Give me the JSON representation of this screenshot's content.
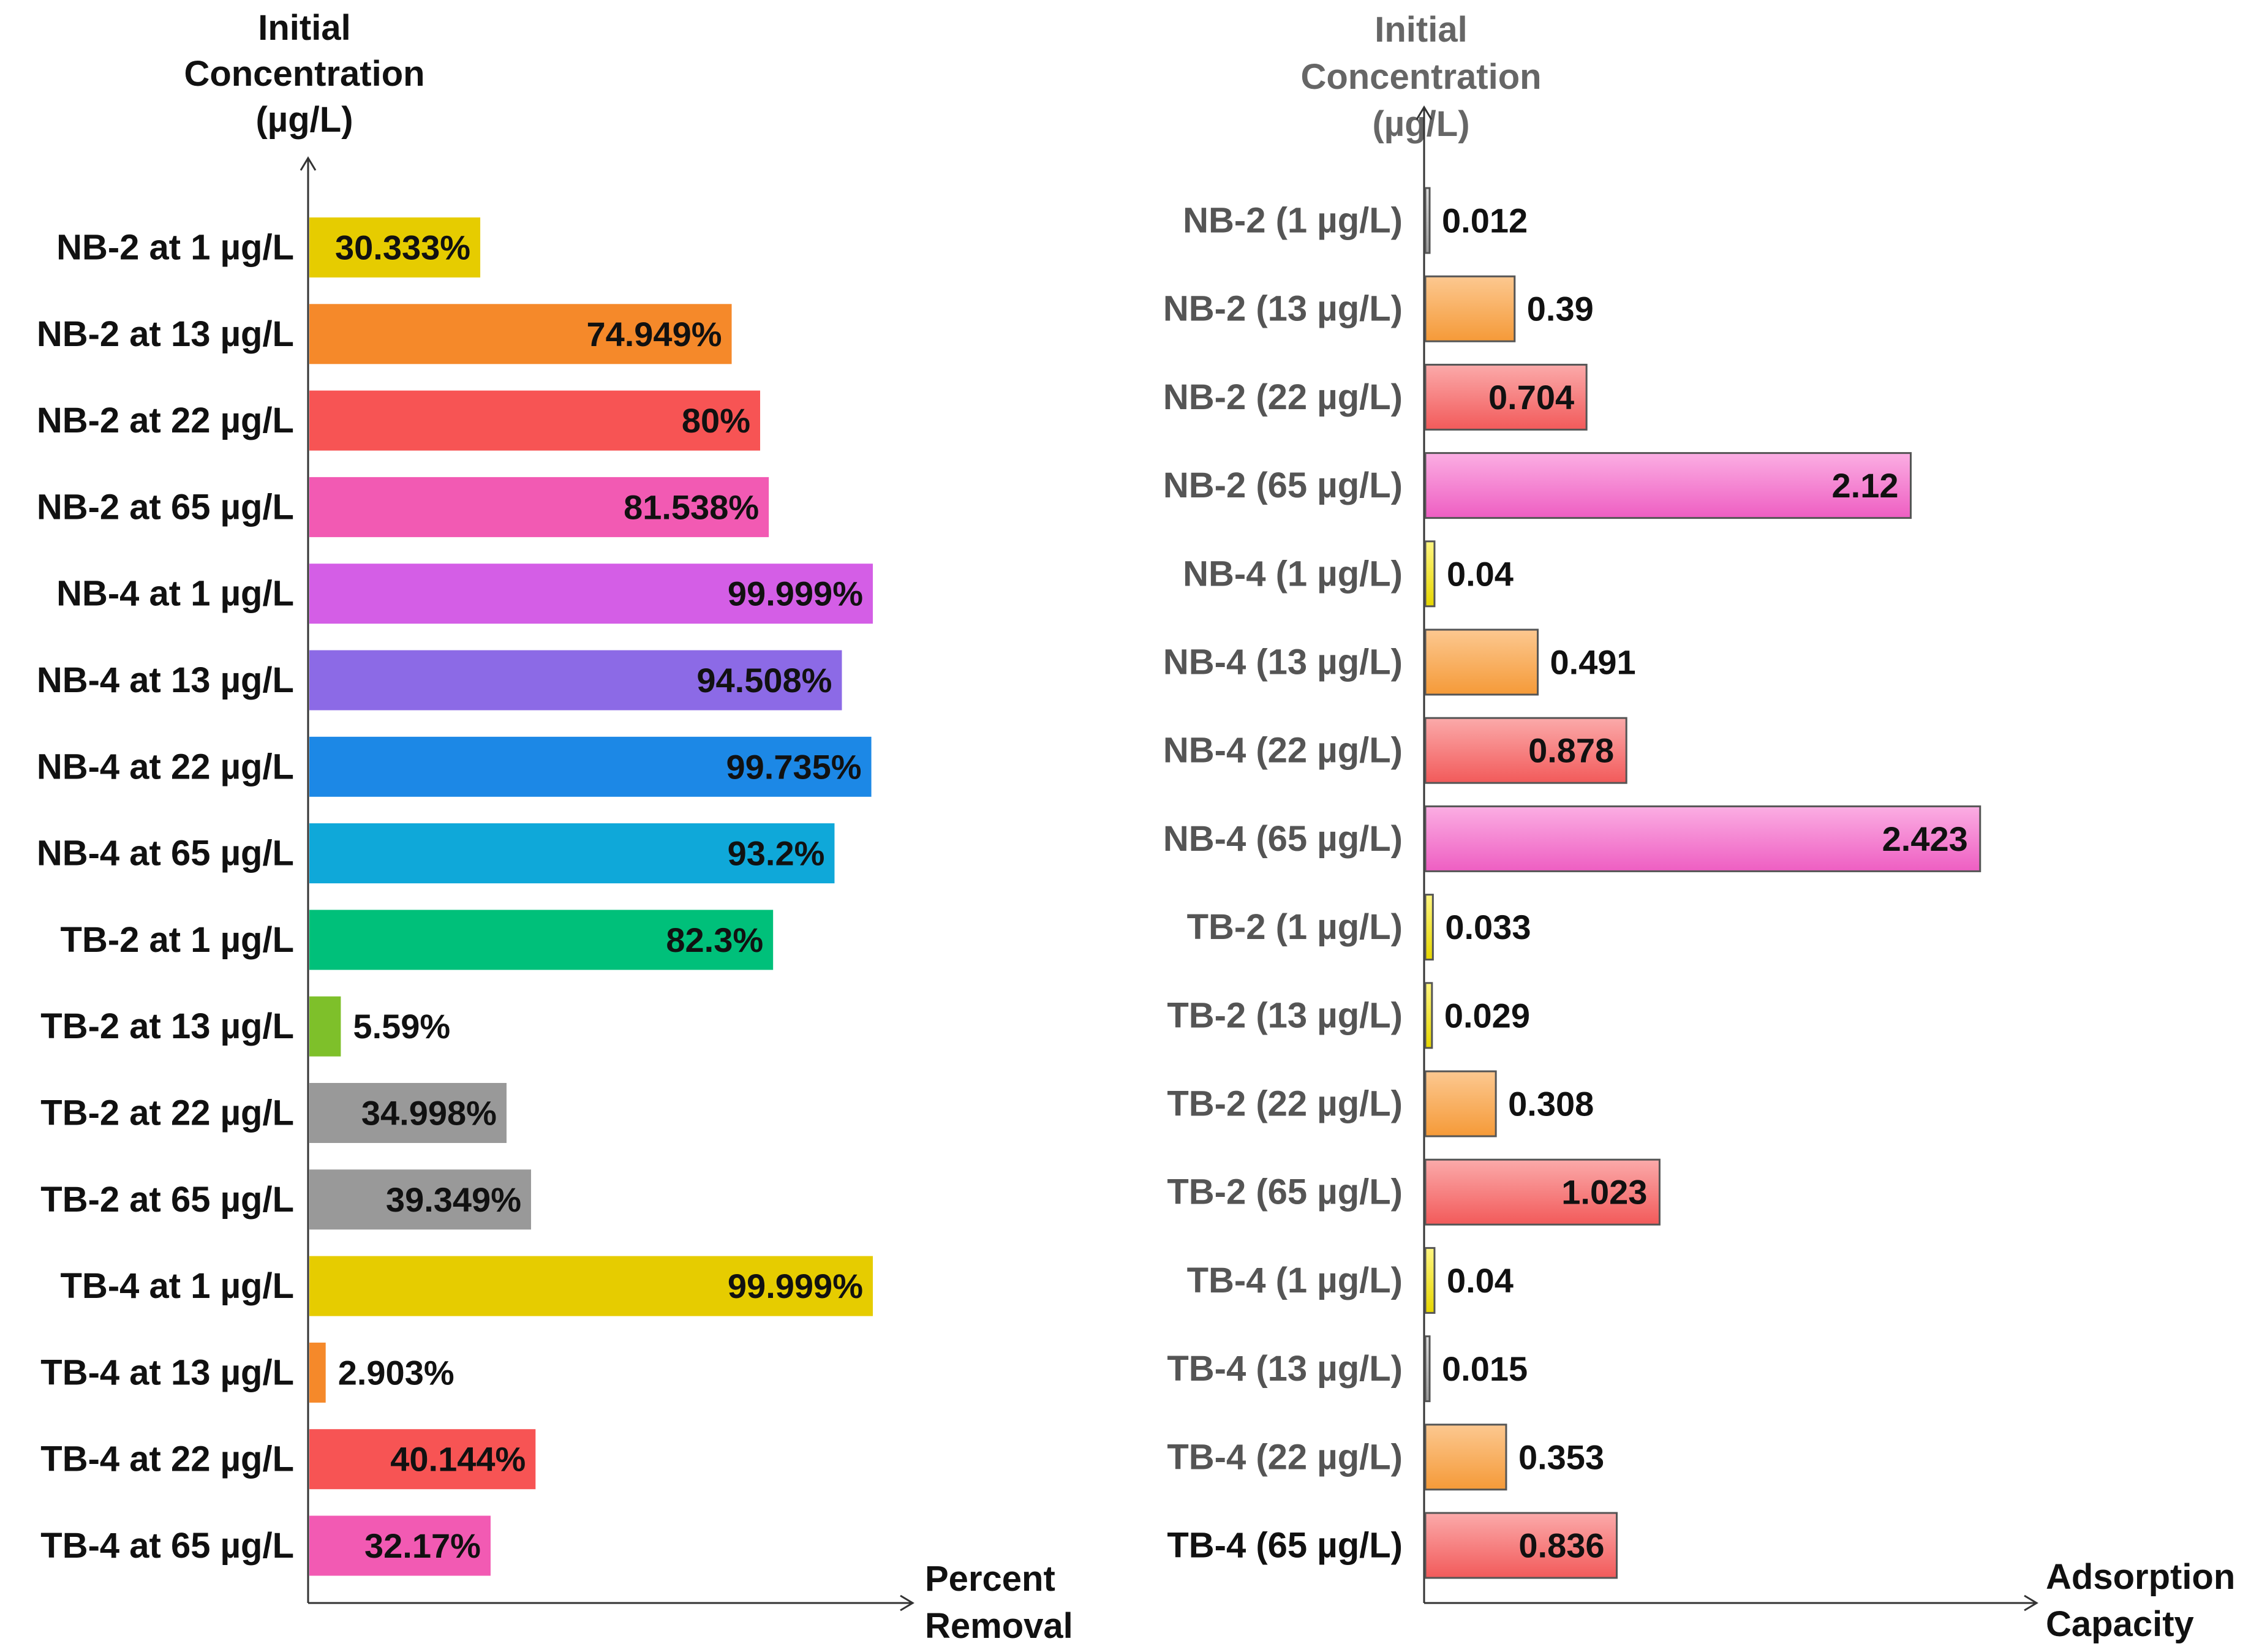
{
  "chart_data": [
    {
      "type": "bar",
      "orientation": "horizontal",
      "y_axis_title": [
        "Initial",
        "Concentration",
        "(µg/L)"
      ],
      "x_axis_title": [
        "Percent",
        "Removal"
      ],
      "xlim": [
        0,
        100
      ],
      "categories": [
        "NB-2 at 1 µg/L",
        "NB-2 at 13 µg/L",
        "NB-2 at 22 µg/L",
        "NB-2 at 65 µg/L",
        "NB-4 at 1 µg/L",
        "NB-4 at 13 µg/L",
        "NB-4 at 22 µg/L",
        "NB-4 at 65 µg/L",
        "TB-2 at 1 µg/L",
        "TB-2 at 13 µg/L",
        "TB-2 at 22 µg/L",
        "TB-2 at 65 µg/L",
        "TB-4 at 1 µg/L",
        "TB-4 at 13 µg/L",
        "TB-4 at 22 µg/L",
        "TB-4 at 65 µg/L"
      ],
      "values": [
        30.333,
        74.949,
        80,
        81.538,
        99.999,
        94.508,
        99.735,
        93.2,
        82.3,
        5.59,
        34.998,
        39.349,
        99.999,
        2.903,
        40.144,
        32.17
      ],
      "labels": [
        "30.333%",
        "74.949%",
        "80%",
        "81.538%",
        "99.999%",
        "94.508%",
        "99.735%",
        "93.2%",
        "82.3%",
        "5.59%",
        "34.998%",
        "39.349%",
        "99.999%",
        "2.903%",
        "40.144%",
        "32.17%"
      ],
      "colors": [
        "#e6cc00",
        "#f5892a",
        "#f75454",
        "#f25ab3",
        "#d45ee6",
        "#8c6ae6",
        "#1c88e6",
        "#0fa8d9",
        "#00c07a",
        "#7ec02a",
        "#999999",
        "#999999",
        "#e6cc00",
        "#f5892a",
        "#f75454",
        "#f25ab3"
      ]
    },
    {
      "type": "bar",
      "orientation": "horizontal",
      "y_axis_title": [
        "Initial",
        "Concentration",
        "(µg/L)"
      ],
      "x_axis_title": [
        "Adsorption",
        "Capacity"
      ],
      "xlim": [
        0,
        2.75
      ],
      "categories": [
        "NB-2 (1 µg/L)",
        "NB-2 (13 µg/L)",
        "NB-2 (22 µg/L)",
        "NB-2 (65 µg/L)",
        "NB-4 (1 µg/L)",
        "NB-4 (13 µg/L)",
        "NB-4 (22 µg/L)",
        "NB-4 (65 µg/L)",
        "TB-2 (1 µg/L)",
        "TB-2 (13 µg/L)",
        "TB-2 (22 µg/L)",
        "TB-2 (65 µg/L)",
        "TB-4 (1 µg/L)",
        "TB-4 (13 µg/L)",
        "TB-4 (22 µg/L)",
        "TB-4 (65 µg/L)"
      ],
      "values": [
        0.012,
        0.39,
        0.704,
        2.12,
        0.04,
        0.491,
        0.878,
        2.423,
        0.033,
        0.029,
        0.308,
        1.023,
        0.04,
        0.015,
        0.353,
        0.836
      ],
      "labels": [
        "0.012",
        "0.39",
        "0.704",
        "2.12",
        "0.04",
        "0.491",
        "0.878",
        "2.423",
        "0.033",
        "0.029",
        "0.308",
        "1.023",
        "0.04",
        "0.015",
        "0.353",
        "0.836"
      ],
      "colors": [
        "#cccccc",
        "#f8a84a",
        "#f57070",
        "#f070c8",
        "#f2e600",
        "#f8a84a",
        "#f57070",
        "#f070c8",
        "#f2e600",
        "#f2e600",
        "#f8a84a",
        "#f57070",
        "#f2e600",
        "#cccccc",
        "#f8a84a",
        "#f57070"
      ],
      "category_label_colors": [
        "#555555",
        "#555555",
        "#555555",
        "#555555",
        "#555555",
        "#555555",
        "#555555",
        "#555555",
        "#555555",
        "#555555",
        "#555555",
        "#555555",
        "#555555",
        "#555555",
        "#555555",
        "#111111"
      ]
    }
  ]
}
